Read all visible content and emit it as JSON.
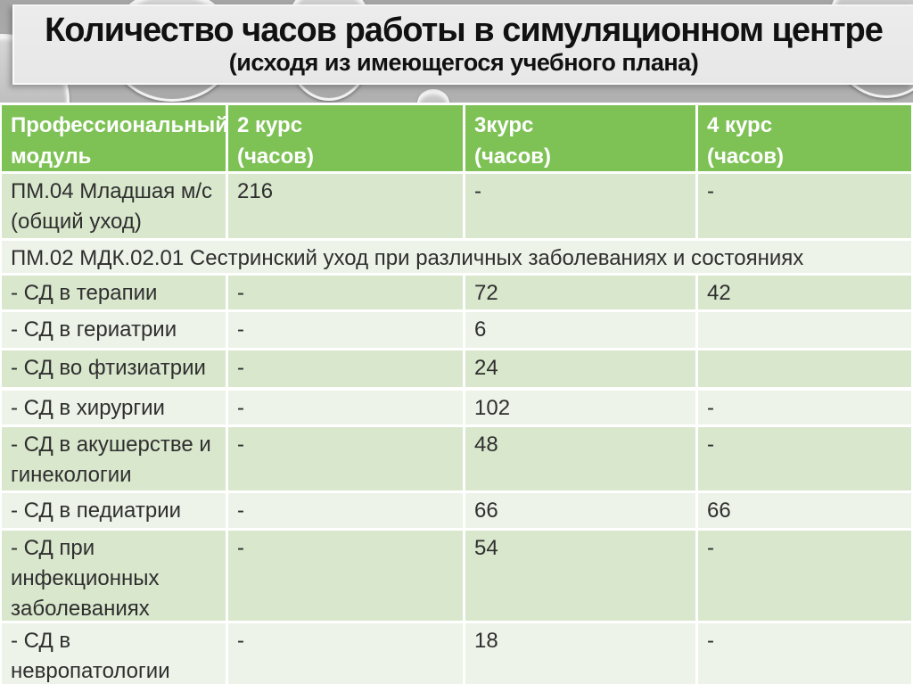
{
  "slide": {
    "title": "Количество часов работы в симуляционном центре",
    "subtitle": "(исходя из имеющегося учебного плана)"
  },
  "table": {
    "header": {
      "col0": "Профессиональный\nмодуль",
      "col1": "2 курс\n(часов)",
      "col2": "3курс\n(часов)",
      "col3": "4 курс\n(часов)"
    },
    "rows": [
      {
        "module": "ПМ.04 Младшая м/с\n(общий уход)",
        "c2": "216",
        "c3": "-",
        "c4": "-"
      },
      {
        "span": "ПМ.02 МДК.02.01 Сестринский уход при различных заболеваниях и состояниях"
      },
      {
        "module": "- СД в терапии",
        "c2": "-",
        "c3": "72",
        "c4": "42"
      },
      {
        "module": "- СД в гериатрии",
        "c2": "-",
        "c3": "6",
        "c4": ""
      },
      {
        "module": "- СД во фтизиатрии",
        "c2": "-",
        "c3": "24",
        "c4": ""
      },
      {
        "module": "- СД в хирургии",
        "c2": "-",
        "c3": "102",
        "c4": "-"
      },
      {
        "module": "- СД в акушерстве и\nгинекологии",
        "c2": "-",
        "c3": "48",
        "c4": "-"
      },
      {
        "module": "- СД в педиатрии",
        "c2": "-",
        "c3": "66",
        "c4": "66"
      },
      {
        "module": "- СД при\nинфекционных\nзаболеваниях",
        "c2": "-",
        "c3": "54",
        "c4": "-"
      },
      {
        "module": "- СД в\nневропатологии",
        "c2": "-",
        "c3": "18",
        "c4": "-"
      }
    ]
  },
  "colors": {
    "header_green": "#7ec256",
    "row_dark_green": "#d9e7cd",
    "row_light_green": "#edf3e8",
    "title_plate_gray": "#e9e9e9",
    "background_gray": "#bcbcbc",
    "header_text": "#ffffff",
    "body_text": "#2f2f2f"
  }
}
